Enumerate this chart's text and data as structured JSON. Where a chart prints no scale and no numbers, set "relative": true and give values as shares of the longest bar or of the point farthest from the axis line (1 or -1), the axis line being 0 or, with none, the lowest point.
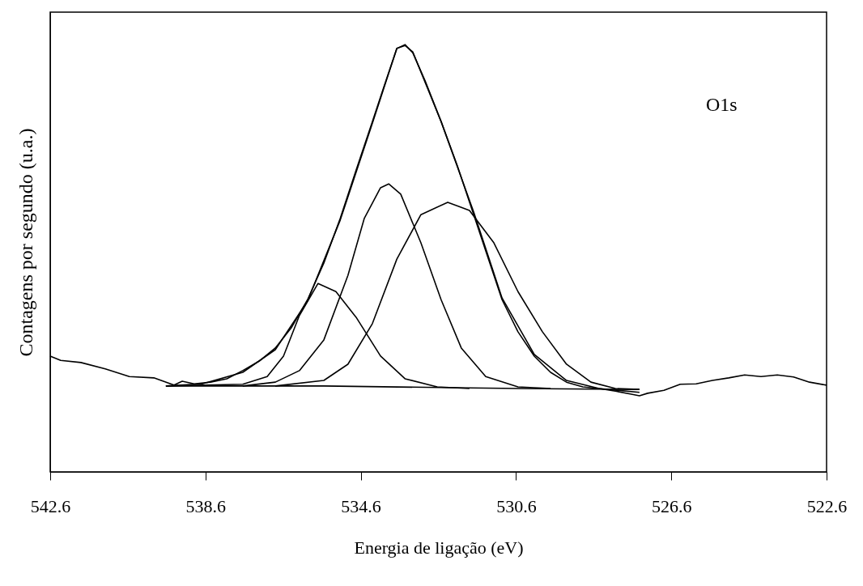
{
  "chart_data": {
    "type": "line",
    "relative": true,
    "xlabel": "Energia de ligação (eV)",
    "ylabel": "Contagens por segundo (u.a.)",
    "annotations": [
      "O1s"
    ],
    "xlim": [
      542.6,
      522.6
    ],
    "xticks": [
      542.6,
      538.6,
      534.6,
      530.6,
      526.6,
      522.6
    ],
    "grid": false,
    "marker": "none",
    "line_style": "solid",
    "series": [
      {
        "color": "#000000",
        "x": [
          542.6,
          542.33,
          541.81,
          541.18,
          540.56,
          539.93,
          539.41,
          539.2,
          538.89,
          538.47,
          538.05,
          537.64,
          537.22,
          536.8,
          536.39,
          535.97,
          535.55,
          535.13,
          534.72,
          534.3,
          533.99,
          533.67,
          533.46,
          533.26,
          532.94,
          532.53,
          532.11,
          531.69,
          531.38,
          530.96,
          530.55,
          530.13,
          529.71,
          529.3,
          528.88,
          528.46,
          528.04,
          527.63,
          527.42,
          527.21,
          526.79,
          526.37,
          525.96,
          525.54,
          525.12,
          524.71,
          524.29,
          523.87,
          523.45,
          523.04,
          522.6
        ],
        "values": [
          0.271,
          0.261,
          0.256,
          0.241,
          0.223,
          0.22,
          0.203,
          0.212,
          0.206,
          0.21,
          0.218,
          0.237,
          0.259,
          0.29,
          0.337,
          0.403,
          0.489,
          0.593,
          0.706,
          0.82,
          0.905,
          0.991,
          1.0,
          0.981,
          0.915,
          0.82,
          0.716,
          0.602,
          0.517,
          0.403,
          0.328,
          0.271,
          0.233,
          0.21,
          0.199,
          0.195,
          0.189,
          0.182,
          0.178,
          0.184,
          0.191,
          0.205,
          0.206,
          0.214,
          0.22,
          0.227,
          0.223,
          0.227,
          0.222,
          0.21,
          0.203
        ]
      },
      {
        "color": "#000000",
        "x": [
          539.62,
          538.68,
          537.64,
          536.8,
          535.97,
          535.13,
          534.3,
          533.67,
          533.46,
          533.26,
          532.53,
          531.69,
          530.96,
          530.13,
          529.3,
          528.46,
          527.42
        ],
        "values": [
          0.201,
          0.206,
          0.233,
          0.286,
          0.4,
          0.589,
          0.816,
          0.991,
          0.998,
          0.983,
          0.82,
          0.608,
          0.407,
          0.275,
          0.214,
          0.195,
          0.186
        ]
      },
      {
        "color": "#000000",
        "x": [
          539.62,
          535.55,
          532.21,
          530.55,
          527.42
        ],
        "values": [
          0.201,
          0.201,
          0.197,
          0.195,
          0.193
        ]
      },
      {
        "color": "#000000",
        "x": [
          539.62,
          537.64,
          537.01,
          536.59,
          536.18,
          535.7,
          535.24,
          534.72,
          534.09,
          533.46,
          532.63,
          531.8
        ],
        "values": [
          0.201,
          0.205,
          0.223,
          0.271,
          0.366,
          0.441,
          0.422,
          0.362,
          0.271,
          0.218,
          0.199,
          0.195
        ]
      },
      {
        "color": "#000000",
        "x": [
          537.64,
          536.8,
          536.18,
          535.55,
          534.93,
          534.51,
          534.09,
          533.88,
          533.57,
          533.05,
          532.53,
          532.01,
          531.38,
          530.55,
          529.71
        ],
        "values": [
          0.201,
          0.21,
          0.237,
          0.309,
          0.46,
          0.593,
          0.665,
          0.674,
          0.65,
          0.536,
          0.403,
          0.29,
          0.223,
          0.199,
          0.195
        ]
      },
      {
        "color": "#000000",
        "x": [
          536.8,
          535.55,
          534.93,
          534.3,
          533.67,
          533.05,
          532.36,
          531.8,
          531.17,
          530.55,
          529.92,
          529.3,
          528.67,
          528.04,
          527.42
        ],
        "values": [
          0.201,
          0.214,
          0.252,
          0.347,
          0.498,
          0.602,
          0.631,
          0.612,
          0.536,
          0.422,
          0.328,
          0.252,
          0.21,
          0.195,
          0.193
        ]
      }
    ]
  }
}
